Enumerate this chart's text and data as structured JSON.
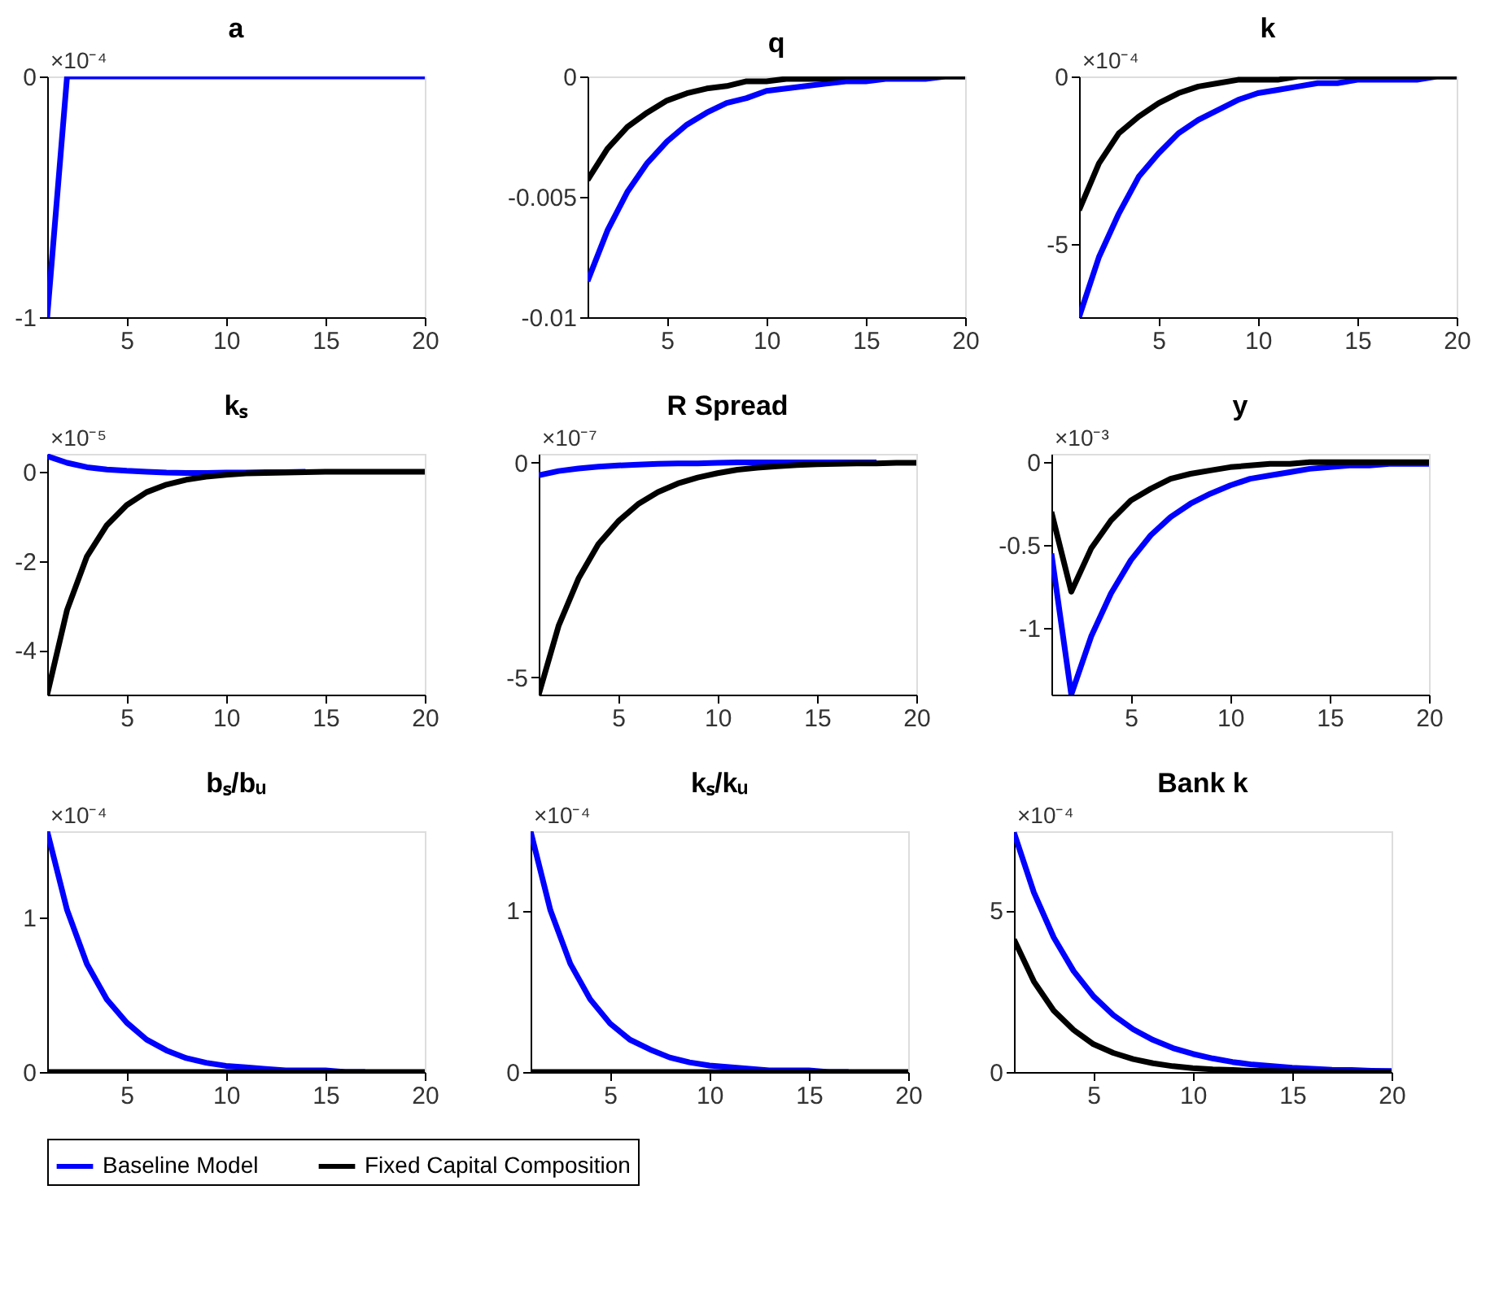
{
  "chart_data": [
    {
      "type": "line",
      "title": "a",
      "annotations": [
        "×10⁻⁴"
      ],
      "x": [
        1,
        2,
        3,
        4,
        5,
        6,
        7,
        8,
        9,
        10,
        11,
        12,
        13,
        14,
        15,
        16,
        17,
        18,
        19,
        20
      ],
      "xlim": [
        1,
        20
      ],
      "xticks": [
        5,
        10,
        15,
        20
      ],
      "ylim": [
        -1,
        0
      ],
      "yticks": [
        -1,
        0
      ],
      "grid": false,
      "legend": "bottom",
      "line_style": "solid",
      "series": [
        {
          "name": "Baseline Model",
          "color": "#0000ff",
          "values": [
            -1,
            0,
            0,
            0,
            0,
            0,
            0,
            0,
            0,
            0,
            0,
            0,
            0,
            0,
            0,
            0,
            0,
            0,
            0,
            0
          ]
        }
      ]
    },
    {
      "type": "line",
      "title": "q",
      "x": [
        1,
        2,
        3,
        4,
        5,
        6,
        7,
        8,
        9,
        10,
        11,
        12,
        13,
        14,
        15,
        16,
        17,
        18,
        19,
        20
      ],
      "xlim": [
        1,
        20
      ],
      "xticks": [
        5,
        10,
        15,
        20
      ],
      "ylim": [
        -0.01,
        0
      ],
      "yticks": [
        -0.01,
        -0.005,
        0
      ],
      "grid": false,
      "legend": "bottom",
      "line_style": "solid",
      "series": [
        {
          "name": "Baseline Model",
          "color": "#0000ff",
          "values": [
            -0.0085,
            -0.0064,
            -0.0048,
            -0.0036,
            -0.0027,
            -0.002,
            -0.0015,
            -0.0011,
            -0.0009,
            -0.0006,
            -0.0005,
            -0.0004,
            -0.0003,
            -0.0002,
            -0.0002,
            -0.0001,
            -0.0001,
            -0.0001,
            0,
            0
          ]
        },
        {
          "name": "Fixed Capital Composition",
          "color": "#000000",
          "values": [
            -0.0043,
            -0.003,
            -0.0021,
            -0.0015,
            -0.001,
            -0.0007,
            -0.0005,
            -0.0004,
            -0.0002,
            -0.0002,
            -0.0001,
            -0.0001,
            -0.0001,
            0,
            0,
            0,
            0,
            0,
            0,
            0
          ]
        }
      ]
    },
    {
      "type": "line",
      "title": "k",
      "annotations": [
        "×10⁻⁴"
      ],
      "x": [
        1,
        2,
        3,
        4,
        5,
        6,
        7,
        8,
        9,
        10,
        11,
        12,
        13,
        14,
        15,
        16,
        17,
        18,
        19,
        20
      ],
      "xlim": [
        1,
        20
      ],
      "xticks": [
        5,
        10,
        15,
        20
      ],
      "ylim": [
        -7.2,
        0
      ],
      "yticks": [
        -5,
        0
      ],
      "grid": false,
      "legend": "bottom",
      "line_style": "solid",
      "series": [
        {
          "name": "Baseline Model",
          "color": "#0000ff",
          "values": [
            -7.2,
            -5.4,
            -4.1,
            -3.0,
            -2.3,
            -1.7,
            -1.3,
            -1.0,
            -0.7,
            -0.5,
            -0.4,
            -0.3,
            -0.2,
            -0.2,
            -0.1,
            -0.1,
            -0.1,
            -0.1,
            0,
            0
          ]
        },
        {
          "name": "Fixed Capital Composition",
          "color": "#000000",
          "values": [
            -4.0,
            -2.6,
            -1.7,
            -1.2,
            -0.8,
            -0.5,
            -0.3,
            -0.2,
            -0.1,
            -0.1,
            -0.1,
            0,
            0,
            0,
            0,
            0,
            0,
            0,
            0,
            0
          ]
        }
      ]
    },
    {
      "type": "line",
      "title": "kₛ",
      "annotations": [
        "×10⁻⁵"
      ],
      "x": [
        1,
        2,
        3,
        4,
        5,
        6,
        7,
        8,
        9,
        10,
        11,
        12,
        13,
        14,
        15,
        16,
        17,
        18,
        19,
        20
      ],
      "xlim": [
        1,
        20
      ],
      "xticks": [
        5,
        10,
        15,
        20
      ],
      "ylim": [
        -5,
        0.4
      ],
      "yticks": [
        -4,
        -2,
        0
      ],
      "grid": false,
      "legend": "bottom",
      "line_style": "solid",
      "series": [
        {
          "name": "Baseline Model",
          "color": "#0000ff",
          "values": [
            0.35,
            0.2,
            0.1,
            0.05,
            0.02,
            0,
            -0.02,
            -0.03,
            -0.03,
            -0.02,
            -0.02,
            -0.01,
            -0.01,
            0,
            null,
            null,
            null,
            null,
            null,
            null
          ]
        },
        {
          "name": "Fixed Capital Composition",
          "color": "#000000",
          "values": [
            -5,
            -3.1,
            -1.9,
            -1.2,
            -0.75,
            -0.46,
            -0.29,
            -0.18,
            -0.11,
            -0.07,
            -0.04,
            -0.03,
            -0.02,
            -0.01,
            0,
            0,
            0,
            0,
            0,
            0
          ]
        }
      ]
    },
    {
      "type": "line",
      "title": "R Spread",
      "annotations": [
        "×10⁻⁷"
      ],
      "x": [
        1,
        2,
        3,
        4,
        5,
        6,
        7,
        8,
        9,
        10,
        11,
        12,
        13,
        14,
        15,
        16,
        17,
        18,
        19,
        20
      ],
      "xlim": [
        1,
        20
      ],
      "xticks": [
        5,
        10,
        15,
        20
      ],
      "ylim": [
        -5.4,
        0.2
      ],
      "yticks": [
        -5,
        0
      ],
      "grid": false,
      "legend": "bottom",
      "line_style": "solid",
      "series": [
        {
          "name": "Baseline Model",
          "color": "#0000ff",
          "values": [
            -0.3,
            -0.2,
            -0.14,
            -0.1,
            -0.07,
            -0.05,
            -0.03,
            -0.02,
            -0.02,
            -0.01,
            0,
            0,
            0,
            0,
            0,
            0,
            0,
            0,
            null,
            null
          ]
        },
        {
          "name": "Fixed Capital Composition",
          "color": "#000000",
          "values": [
            -5.4,
            -3.8,
            -2.7,
            -1.9,
            -1.37,
            -0.97,
            -0.69,
            -0.49,
            -0.35,
            -0.25,
            -0.17,
            -0.12,
            -0.09,
            -0.06,
            -0.04,
            -0.03,
            -0.02,
            -0.02,
            -0.01,
            -0.01
          ]
        }
      ]
    },
    {
      "type": "line",
      "title": "y",
      "annotations": [
        "×10⁻³"
      ],
      "x": [
        1,
        2,
        3,
        4,
        5,
        6,
        7,
        8,
        9,
        10,
        11,
        12,
        13,
        14,
        15,
        16,
        17,
        18,
        19,
        20
      ],
      "xlim": [
        1,
        20
      ],
      "xticks": [
        5,
        10,
        15,
        20
      ],
      "ylim": [
        -1.4,
        0.05
      ],
      "yticks": [
        -1,
        -0.5,
        0
      ],
      "grid": false,
      "legend": "bottom",
      "line_style": "solid",
      "series": [
        {
          "name": "Baseline Model",
          "color": "#0000ff",
          "values": [
            -0.55,
            -1.4,
            -1.05,
            -0.79,
            -0.59,
            -0.44,
            -0.33,
            -0.25,
            -0.19,
            -0.14,
            -0.1,
            -0.08,
            -0.06,
            -0.04,
            -0.03,
            -0.02,
            -0.02,
            -0.01,
            -0.01,
            -0.01
          ]
        },
        {
          "name": "Fixed Capital Composition",
          "color": "#000000",
          "values": [
            -0.3,
            -0.78,
            -0.52,
            -0.35,
            -0.23,
            -0.16,
            -0.1,
            -0.07,
            -0.05,
            -0.03,
            -0.02,
            -0.01,
            -0.01,
            0,
            0,
            0,
            0,
            0,
            0,
            0
          ]
        }
      ]
    },
    {
      "type": "line",
      "title": "bₛ/bᵤ",
      "annotations": [
        "×10⁻⁴"
      ],
      "x": [
        1,
        2,
        3,
        4,
        5,
        6,
        7,
        8,
        9,
        10,
        11,
        12,
        13,
        14,
        15,
        16,
        17,
        18,
        19,
        20
      ],
      "xlim": [
        1,
        20
      ],
      "xticks": [
        5,
        10,
        15,
        20
      ],
      "ylim": [
        0,
        1.56
      ],
      "yticks": [
        0,
        1
      ],
      "grid": false,
      "legend": "bottom",
      "line_style": "solid",
      "series": [
        {
          "name": "Baseline Model",
          "color": "#0000ff",
          "values": [
            1.56,
            1.05,
            0.7,
            0.47,
            0.32,
            0.21,
            0.14,
            0.09,
            0.06,
            0.04,
            0.03,
            0.02,
            0.01,
            0.01,
            0.01,
            0,
            0,
            null,
            null,
            null
          ]
        },
        {
          "name": "Fixed Capital Composition",
          "color": "#000000",
          "values": [
            0,
            0,
            0,
            0,
            0,
            0,
            0,
            0,
            0,
            0,
            0,
            0,
            0,
            0,
            0,
            0,
            0,
            0,
            0,
            0
          ]
        }
      ]
    },
    {
      "type": "line",
      "title": "kₛ/kᵤ",
      "annotations": [
        "×10⁻⁴"
      ],
      "x": [
        1,
        2,
        3,
        4,
        5,
        6,
        7,
        8,
        9,
        10,
        11,
        12,
        13,
        14,
        15,
        16,
        17,
        18,
        19,
        20
      ],
      "xlim": [
        1,
        20
      ],
      "xticks": [
        5,
        10,
        15,
        20
      ],
      "ylim": [
        0,
        1.49
      ],
      "yticks": [
        0,
        1
      ],
      "grid": false,
      "legend": "bottom",
      "line_style": "solid",
      "series": [
        {
          "name": "Baseline Model",
          "color": "#0000ff",
          "values": [
            1.49,
            1.0,
            0.67,
            0.45,
            0.3,
            0.2,
            0.14,
            0.09,
            0.06,
            0.04,
            0.03,
            0.02,
            0.01,
            0.01,
            0.01,
            0,
            0,
            null,
            null,
            null
          ]
        },
        {
          "name": "Fixed Capital Composition",
          "color": "#000000",
          "values": [
            0,
            0,
            0,
            0,
            0,
            0,
            0,
            0,
            0,
            0,
            0,
            0,
            0,
            0,
            0,
            0,
            0,
            0,
            0,
            0
          ]
        }
      ]
    },
    {
      "type": "line",
      "title": "Bank k",
      "annotations": [
        "×10⁻⁴"
      ],
      "x": [
        1,
        2,
        3,
        4,
        5,
        6,
        7,
        8,
        9,
        10,
        11,
        12,
        13,
        14,
        15,
        16,
        17,
        18,
        19,
        20
      ],
      "xlim": [
        1,
        20
      ],
      "xticks": [
        5,
        10,
        15,
        20
      ],
      "ylim": [
        0,
        7.44
      ],
      "yticks": [
        0,
        5
      ],
      "grid": false,
      "legend": "bottom",
      "line_style": "solid",
      "series": [
        {
          "name": "Baseline Model",
          "color": "#0000ff",
          "values": [
            7.4,
            5.55,
            4.16,
            3.12,
            2.34,
            1.76,
            1.32,
            0.99,
            0.74,
            0.56,
            0.42,
            0.31,
            0.23,
            0.18,
            0.13,
            0.1,
            0.07,
            0.06,
            0.04,
            0.03
          ]
        },
        {
          "name": "Fixed Capital Composition",
          "color": "#000000",
          "values": [
            4.1,
            2.8,
            1.9,
            1.3,
            0.86,
            0.59,
            0.4,
            0.27,
            0.18,
            0.12,
            0.08,
            0.06,
            0.04,
            0.03,
            0.02,
            0.01,
            0.01,
            0,
            0,
            0
          ]
        }
      ]
    }
  ]
}
